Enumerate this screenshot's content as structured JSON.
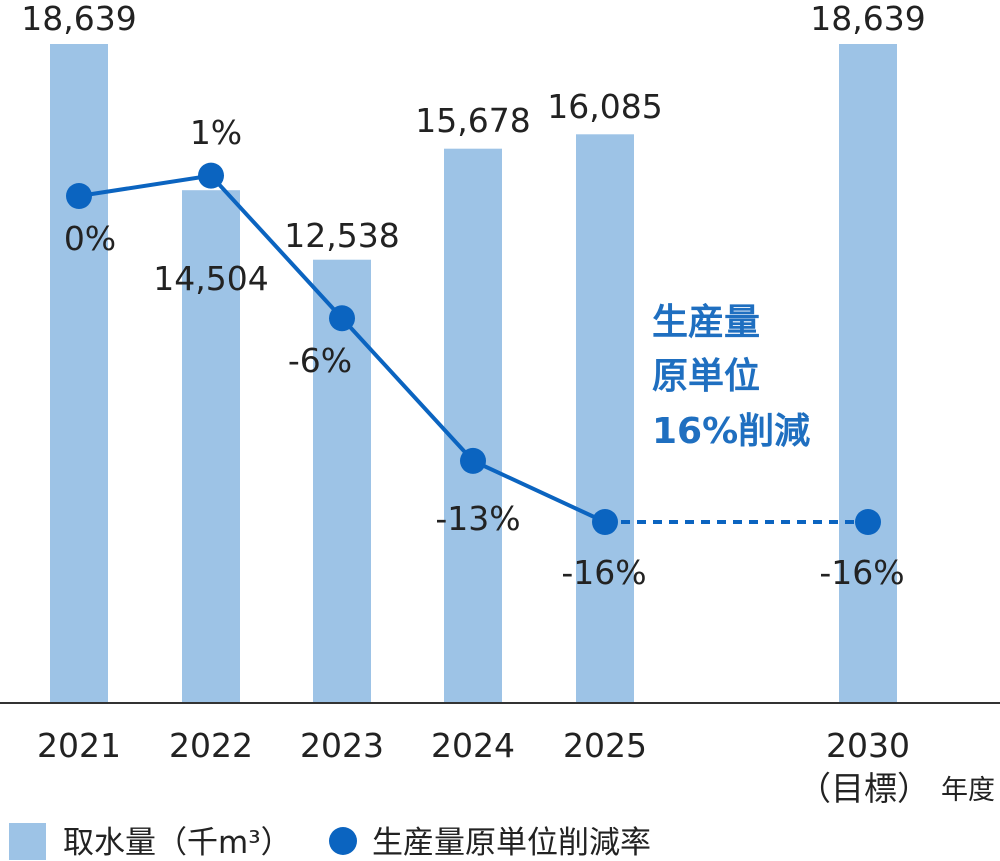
{
  "chart_data": {
    "type": "bar",
    "categories": [
      "2021",
      "2022",
      "2023",
      "2024",
      "2025",
      "2030"
    ],
    "category_sublabels": [
      "",
      "",
      "",
      "",
      "",
      "（目標）"
    ],
    "x_unit_label": "年度",
    "series": [
      {
        "name": "取水量（千m³）",
        "type": "bar",
        "values": [
          18639,
          14504,
          12538,
          15678,
          16085,
          18639
        ],
        "labels": [
          "18,639",
          "14,504",
          "12,538",
          "15,678",
          "16,085",
          "18,639"
        ]
      },
      {
        "name": "生産量原単位削減率",
        "type": "line",
        "values": [
          0,
          1,
          -6,
          -13,
          -16,
          -16
        ],
        "labels": [
          "0%",
          "1%",
          "-6%",
          "-13%",
          "-16%",
          "-16%"
        ],
        "dashed_segment": [
          "2025",
          "2030"
        ]
      }
    ],
    "ylim_bar": [
      0,
      18639
    ],
    "ylim_line": [
      -16,
      1
    ],
    "annotation": [
      "生産量",
      "原単位",
      "16%削減"
    ],
    "legend_position": "bottom-left",
    "grid": false
  },
  "colors": {
    "bar": "#9dc3e6",
    "line": "#0b64c0",
    "callout": "#1f6fc0",
    "axis": "#333333"
  }
}
